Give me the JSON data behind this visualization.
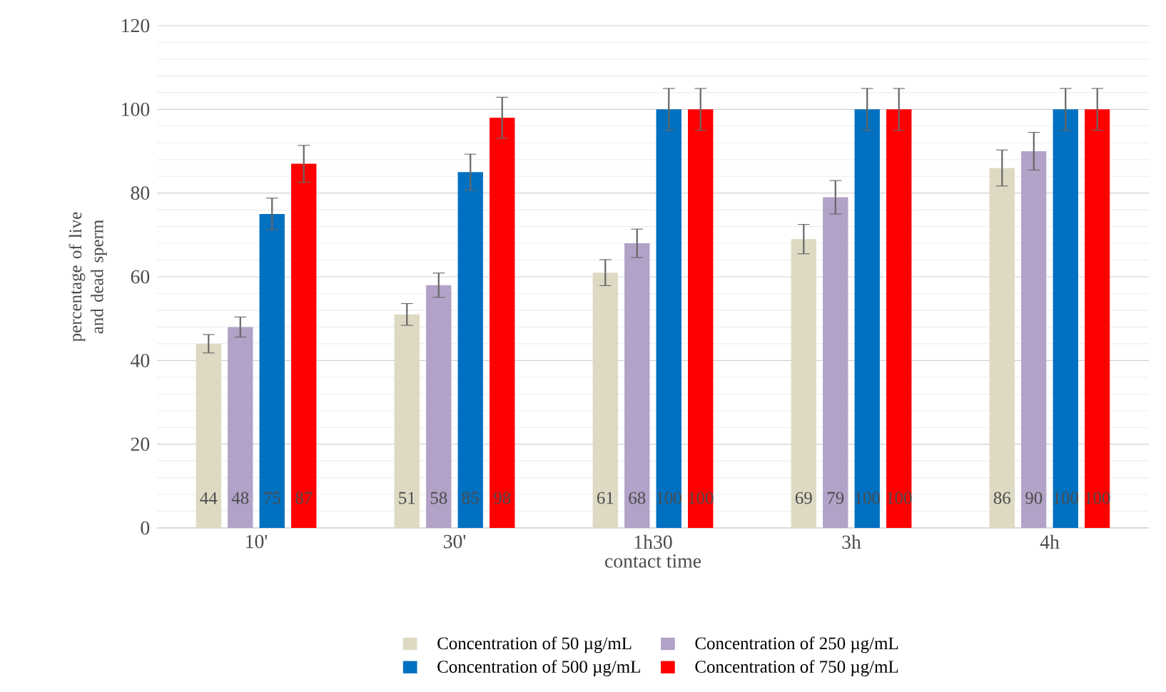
{
  "chart_data": {
    "type": "bar",
    "xlabel": "contact time",
    "ylabel": "percentage of live and dead sperm",
    "categories": [
      "10'",
      "30'",
      "1h30",
      "3h",
      "4h"
    ],
    "series": [
      {
        "name": "Concentration of 50 µg/mL",
        "color": "#ddd9c3",
        "values": [
          44,
          51,
          61,
          69,
          86
        ],
        "errors": [
          2.2,
          2.6,
          3.1,
          3.5,
          4.3
        ]
      },
      {
        "name": "Concentration of 250 µg/mL",
        "color": "#b2a2c7",
        "values": [
          48,
          58,
          68,
          79,
          90
        ],
        "errors": [
          2.4,
          2.9,
          3.4,
          4,
          4.5
        ]
      },
      {
        "name": "Concentration of 500 µg/mL",
        "color": "#0070c0",
        "values": [
          75,
          85,
          100,
          100,
          100
        ],
        "errors": [
          3.8,
          4.3,
          5,
          5,
          5
        ]
      },
      {
        "name": "Concentration of 750 µg/mL",
        "color": "#ff0000",
        "values": [
          87,
          98,
          100,
          100,
          100
        ],
        "errors": [
          4.4,
          4.9,
          5,
          5,
          5
        ]
      }
    ],
    "ylim": [
      0,
      120
    ],
    "yticks": [
      0,
      20,
      40,
      60,
      80,
      100,
      120
    ],
    "grid": "y",
    "legend": "bottom",
    "data_labels": true
  }
}
